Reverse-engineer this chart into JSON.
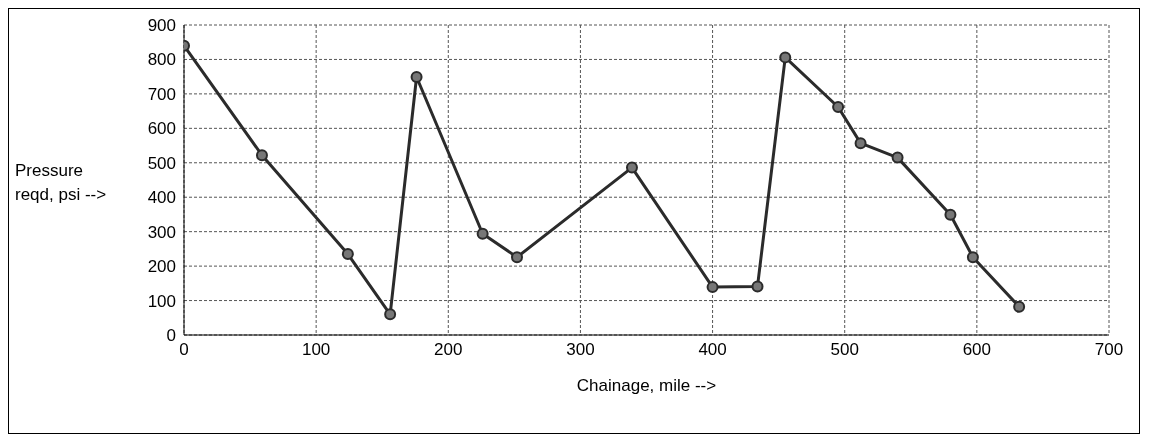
{
  "chart_data": {
    "type": "line",
    "xlabel": "Chainage, mile -->",
    "ylabel": "Pressure reqd, psi -->",
    "x": [
      0,
      59,
      124,
      156,
      176,
      226,
      252,
      339,
      400,
      434,
      455,
      495,
      512,
      540,
      580,
      597,
      632
    ],
    "series": [
      {
        "color": "#2b2b2b",
        "values": [
          840,
          522,
          235,
          60,
          749,
          294,
          226,
          486,
          139,
          141,
          806,
          662,
          557,
          515,
          349,
          226,
          82
        ]
      }
    ],
    "xlim": [
      0,
      700
    ],
    "xticks": [
      0,
      100,
      200,
      300,
      400,
      500,
      600,
      700
    ],
    "ylim": [
      0,
      900
    ],
    "yticks": [
      0,
      100,
      200,
      300,
      400,
      500,
      600,
      700,
      800,
      900
    ],
    "grid": true,
    "marker": "circle",
    "line_style": "solid"
  }
}
